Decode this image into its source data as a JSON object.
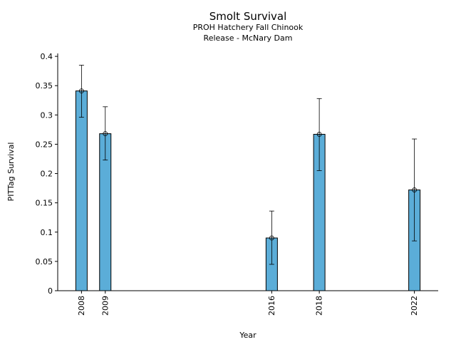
{
  "chart_data": {
    "type": "bar",
    "title": "Smolt Survival",
    "subtitle_lines": [
      "PROH Hatchery Fall Chinook",
      "Release - McNary Dam"
    ],
    "xlabel": "Year",
    "ylabel": "PITTag Survival",
    "x": [
      2008,
      2009,
      2016,
      2018,
      2022
    ],
    "x_tick_labels": [
      "2008",
      "2009",
      "2016",
      "2018",
      "2022"
    ],
    "xlim": [
      2007.0,
      2023.0
    ],
    "values": [
      0.341,
      0.268,
      0.09,
      0.267,
      0.172
    ],
    "error_low": [
      0.296,
      0.223,
      0.045,
      0.205,
      0.085
    ],
    "error_high": [
      0.385,
      0.314,
      0.136,
      0.328,
      0.259
    ],
    "ylim": [
      0,
      0.405
    ],
    "y_ticks": [
      0,
      0.05,
      0.1,
      0.15,
      0.2,
      0.25,
      0.3,
      0.35,
      0.4
    ],
    "y_tick_labels": [
      "0",
      "0.05",
      "0.1",
      "0.15",
      "0.2",
      "0.25",
      "0.3",
      "0.35",
      "0.4"
    ],
    "grid": false,
    "colors": {
      "bar": "#5badd8",
      "bar_edge": "#000000",
      "error": "#000000"
    }
  }
}
